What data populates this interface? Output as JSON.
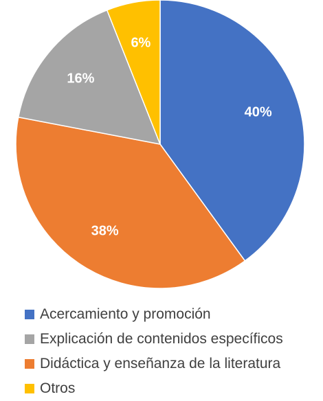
{
  "chart_data": {
    "type": "pie",
    "start_angle_deg": 0,
    "direction": "clockwise",
    "legend_position": "bottom",
    "slices": [
      {
        "label": "Acercamiento y promoción",
        "value": 40,
        "display": "40%",
        "color": "#4472C4"
      },
      {
        "label": "Didáctica y enseñanza de la literatura",
        "value": 38,
        "display": "38%",
        "color": "#ED7D31"
      },
      {
        "label": "Explicación de contenidos específicos",
        "value": 16,
        "display": "16%",
        "color": "#A5A5A5"
      },
      {
        "label": "Otros",
        "value": 6,
        "display": "6%",
        "color": "#FFC000"
      }
    ],
    "legend": [
      {
        "label": "Acercamiento y promoción",
        "color": "#4472C4"
      },
      {
        "label": "Explicación de contenidos específicos",
        "color": "#A5A5A5"
      },
      {
        "label": "Didáctica y enseñanza de la literatura",
        "color": "#ED7D31"
      },
      {
        "label": "Otros",
        "color": "#FFC000"
      }
    ]
  }
}
